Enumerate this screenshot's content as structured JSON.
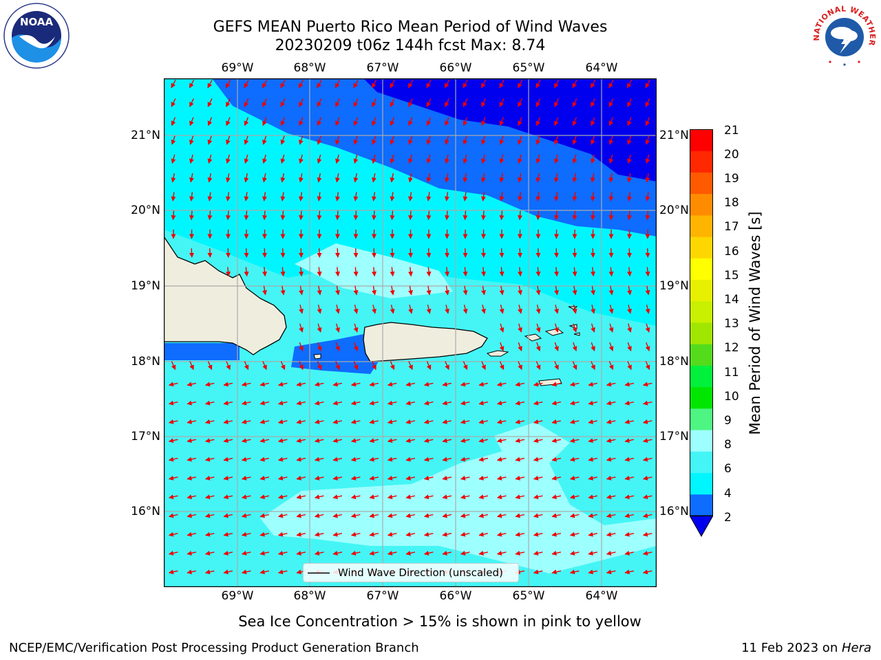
{
  "header": {
    "title_line1": "GEFS MEAN Puerto Rico Mean Period of Wind Waves",
    "title_line2": "20230209 t06z 144h fcst   Max: 8.74"
  },
  "logos": {
    "noaa_text": "NOAA",
    "nws_text": "NATIONAL WEATHER SERVICE"
  },
  "map": {
    "lon_labels": [
      "69°W",
      "68°W",
      "67°W",
      "66°W",
      "65°W",
      "64°W"
    ],
    "lat_labels": [
      "21°N",
      "20°N",
      "19°N",
      "18°N",
      "17°N",
      "16°N"
    ],
    "legend_label": "Wind Wave Direction (unscaled)",
    "colors": {
      "ocean_blue_dark": "#0000ee",
      "ocean_blue": "#0e6cff",
      "ocean_cyan": "#00f6ff",
      "ocean_cyan_light": "#45f5f5",
      "ocean_pale": "#9effff",
      "land": "#efedde",
      "arrow": "#ee0000"
    }
  },
  "colorbar": {
    "label": "Mean Period of Wind Waves [s]",
    "ticks": [
      "21",
      "20",
      "19",
      "18",
      "17",
      "16",
      "15",
      "14",
      "13",
      "12",
      "11",
      "10",
      "9",
      "8",
      "6",
      "4",
      "2"
    ],
    "colors_bottom_to_top": [
      "#0e6cff",
      "#00f6ff",
      "#45f5f5",
      "#9effff",
      "#4ef582",
      "#00e600",
      "#00f03c",
      "#54dc1c",
      "#a0e600",
      "#c8f000",
      "#e6f000",
      "#ffff00",
      "#ffd700",
      "#ffb400",
      "#ff8c00",
      "#ff5a00",
      "#ff2800",
      "#ff0000"
    ],
    "extend_color": "#0000ee"
  },
  "footer": {
    "sea_ice_note": "Sea Ice Concentration > 15% is shown in pink to yellow",
    "left": "NCEP/EMC/Verification Post Processing Product Generation Branch",
    "right_date": "11 Feb 2023 on ",
    "right_host": "Hera"
  }
}
